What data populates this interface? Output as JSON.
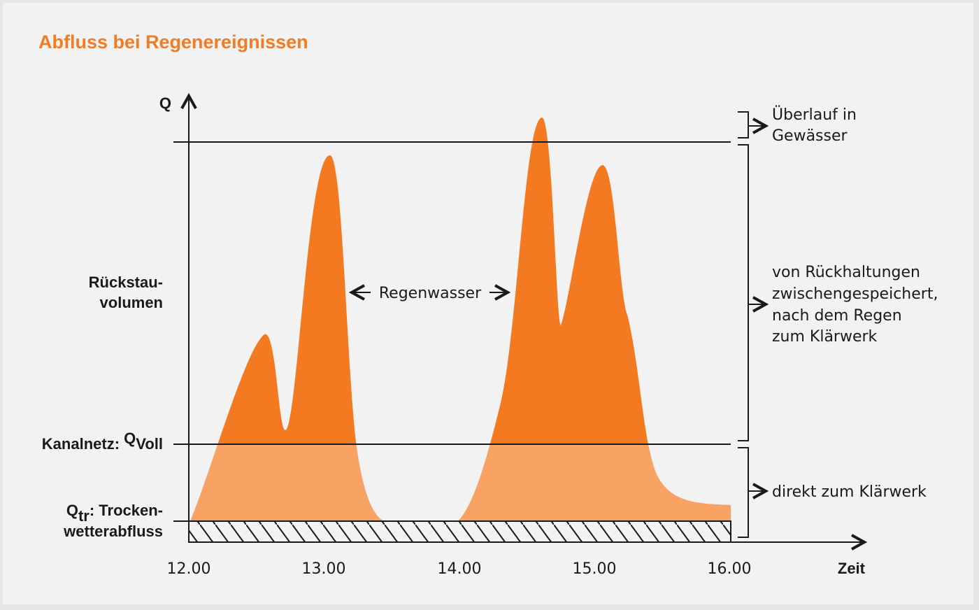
{
  "title": "Abfluss bei Regenereignissen",
  "y_axis": {
    "label": "Q",
    "levels": [
      {
        "lines": [
          "Rückstau-",
          "volumen"
        ]
      },
      {
        "prefix": "Kanalnetz:",
        "symbol": "Q",
        "subscript": "Voll"
      },
      {
        "symbol": "Q",
        "subscript": "tr",
        "suffix": ": Trocken-",
        "line2": "wetterabfluss"
      }
    ]
  },
  "x_axis": {
    "label": "Zeit",
    "ticks": [
      "12.00",
      "13.00",
      "14.00",
      "15.00",
      "16.00"
    ]
  },
  "annotation": "Regenwasser",
  "right_labels": [
    {
      "lines": [
        "Überlauf in",
        "Gewässer"
      ]
    },
    {
      "lines": [
        "von Rückhaltungen",
        "zwischengespeichert,",
        "nach dem Regen",
        "zum Klärwerk"
      ]
    },
    {
      "lines": [
        "direkt zum Klärwerk"
      ]
    }
  ]
}
